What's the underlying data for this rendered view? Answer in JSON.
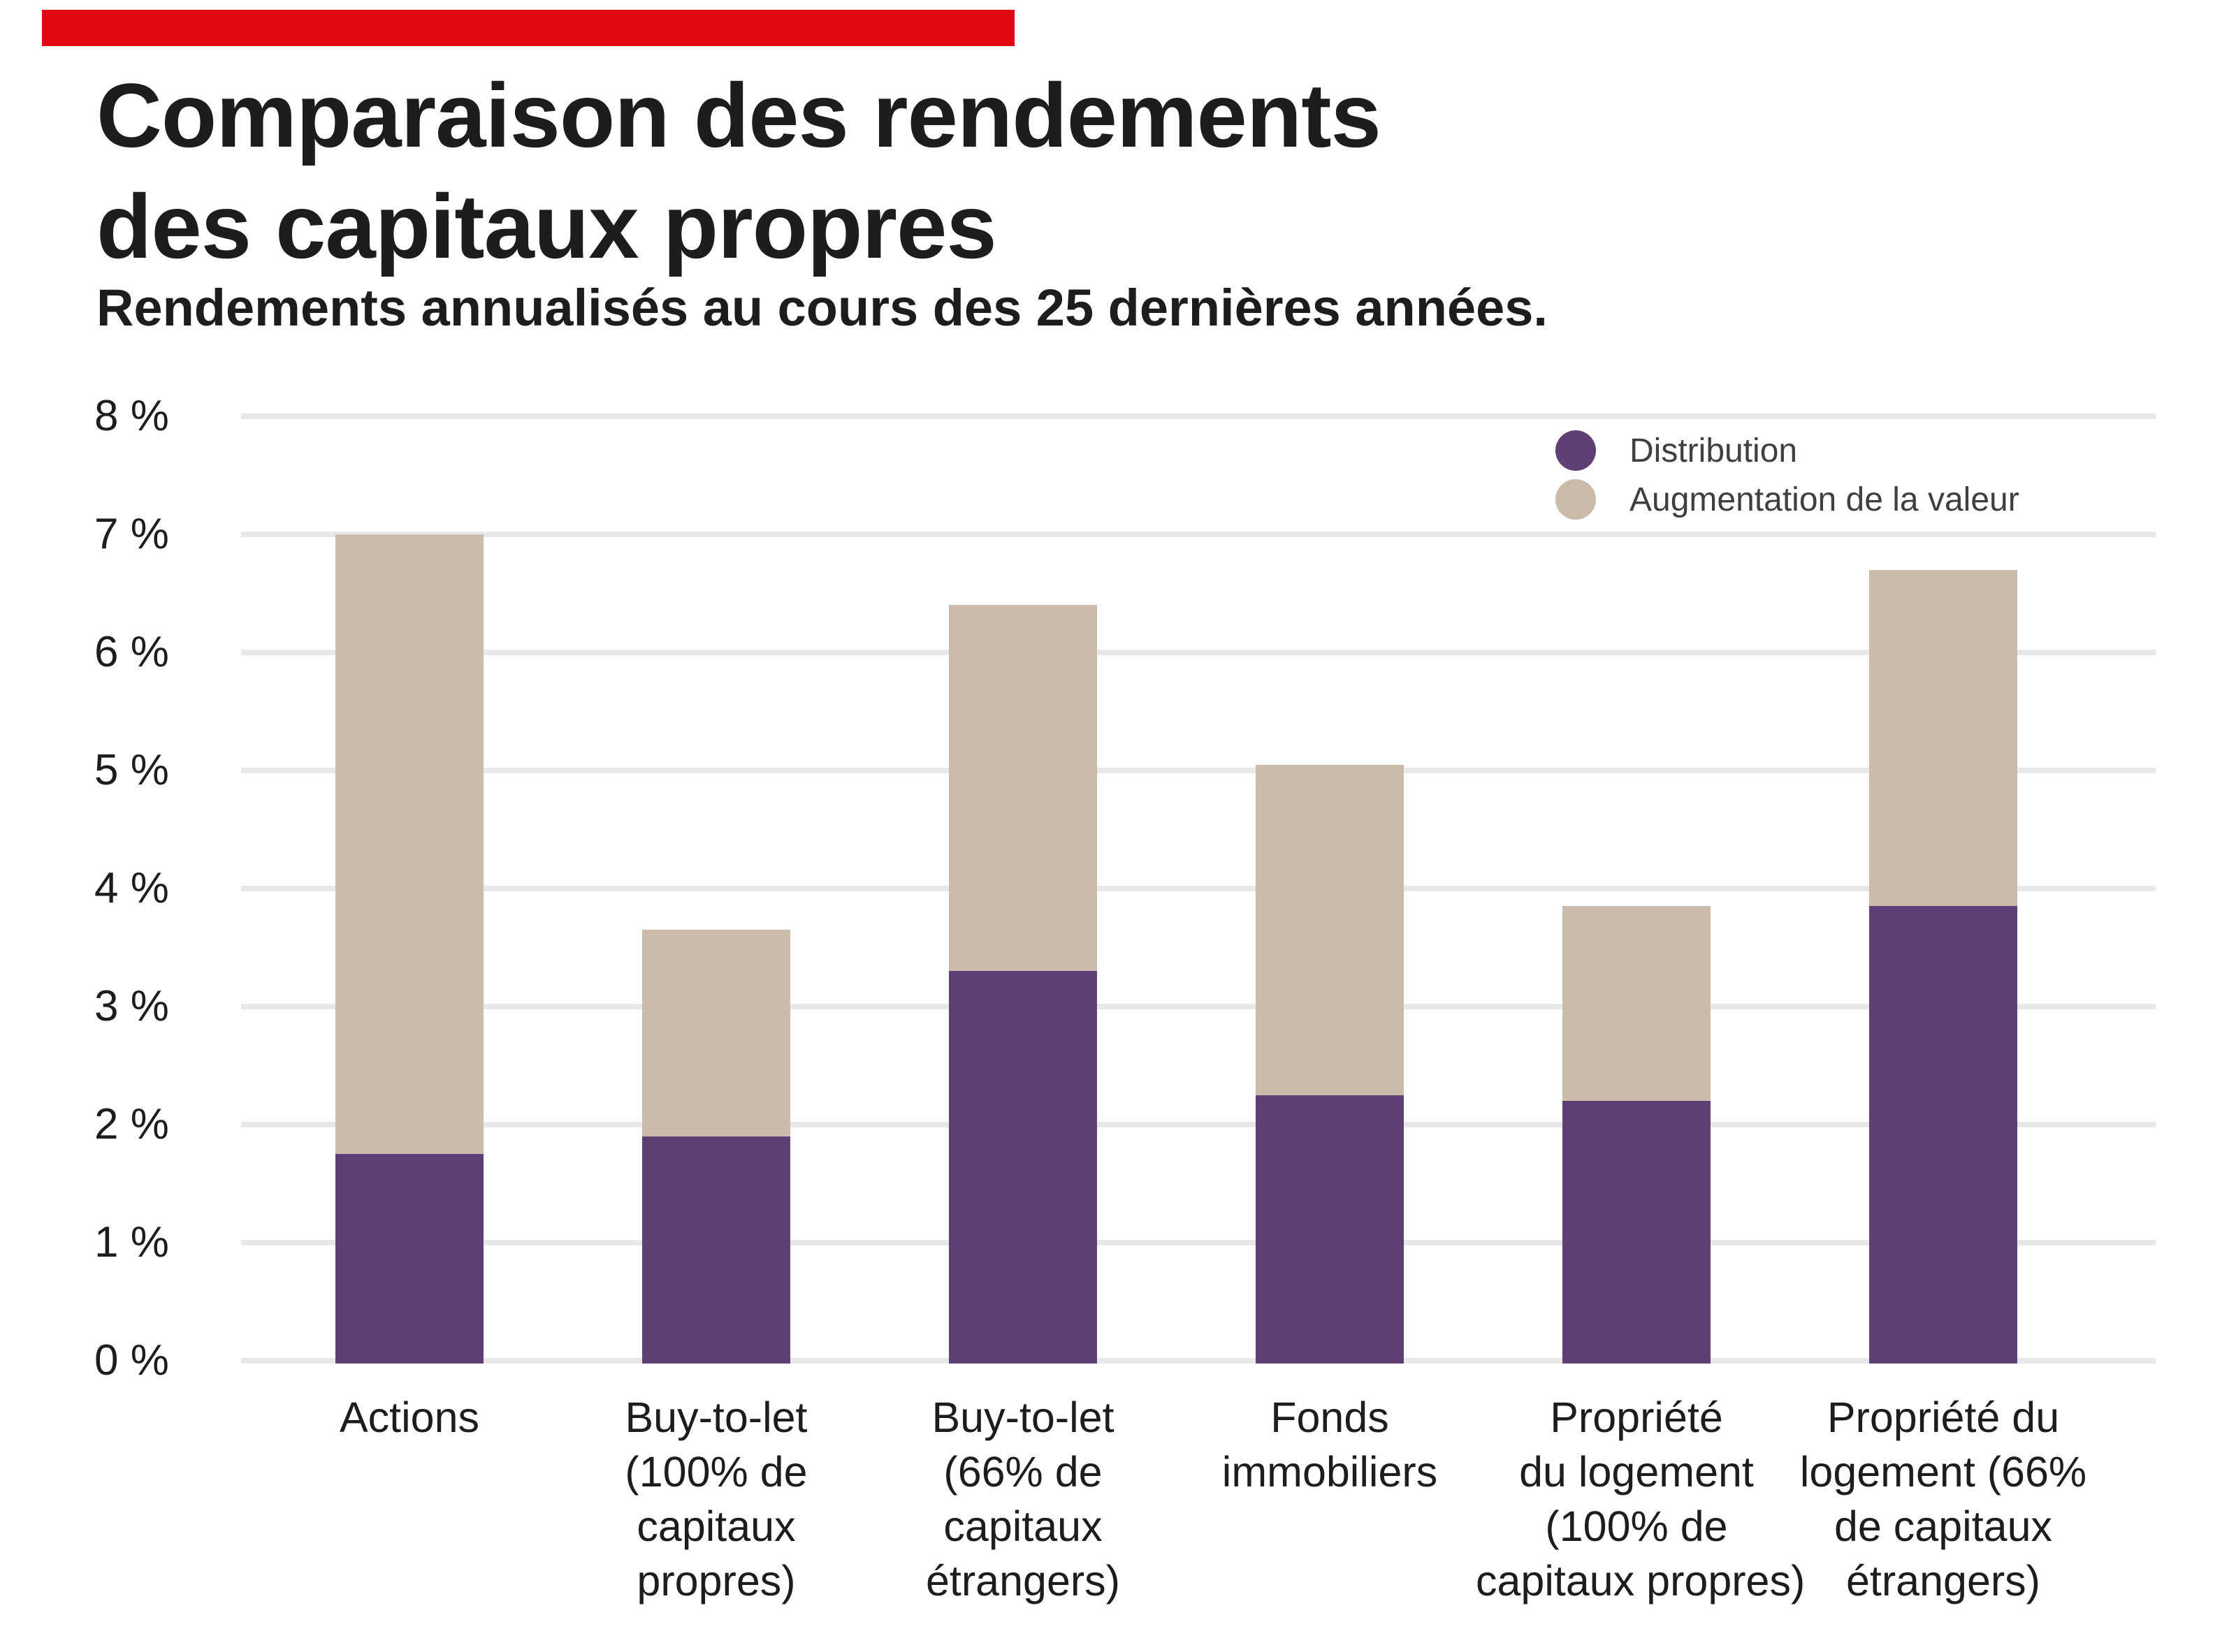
{
  "header": {
    "brand_bar_color": "#e30613",
    "title": "Comparaison des rendements\ndes capitaux propres",
    "subtitle": "Rendements annualisés au cours des 25 dernières années."
  },
  "chart_data": {
    "type": "bar",
    "stacked": true,
    "title": "Comparaison des rendements des capitaux propres",
    "subtitle": "Rendements annualisés au cours des 25 dernières années.",
    "categories": [
      "Actions",
      "Buy-to-let (100% de capitaux propres)",
      "Buy-to-let (66% de capitaux étrangers)",
      "Fonds immobiliers",
      "Propriété du logement (100% de capitaux propres)",
      "Propriété du logement (66% de capitaux étrangers)"
    ],
    "category_lines": [
      [
        "Actions"
      ],
      [
        "Buy-to-let",
        "(100% de",
        "capitaux",
        "propres)"
      ],
      [
        "Buy-to-let",
        "(66% de",
        "capitaux",
        "étrangers)"
      ],
      [
        "Fonds",
        "immobiliers"
      ],
      [
        "Propriété",
        "du logement",
        "(100% de",
        "capitaux propres)"
      ],
      [
        "Propriété du",
        "logement (66%",
        "de capitaux",
        "étrangers)"
      ]
    ],
    "series": [
      {
        "name": "Distribution",
        "color": "#5e4076",
        "values": [
          1.75,
          1.9,
          3.3,
          2.25,
          2.2,
          3.85
        ]
      },
      {
        "name": "Augmentation de la valeur",
        "color": "#cabbaa",
        "values": [
          5.25,
          1.75,
          3.1,
          2.8,
          1.65,
          2.85
        ]
      }
    ],
    "totals": [
      7.0,
      3.65,
      6.4,
      5.05,
      3.85,
      6.7
    ],
    "ylim": [
      0,
      8
    ],
    "ytick_values": [
      0,
      1,
      2,
      3,
      4,
      5,
      6,
      7,
      8
    ],
    "ytick_labels": [
      "0 %",
      "1 %",
      "2 %",
      "3 %",
      "4 %",
      "5 %",
      "6 %",
      "7 %",
      "8 %"
    ],
    "grid": true,
    "gridline_color": "#e9e8e8",
    "legend_position": "top-right"
  }
}
